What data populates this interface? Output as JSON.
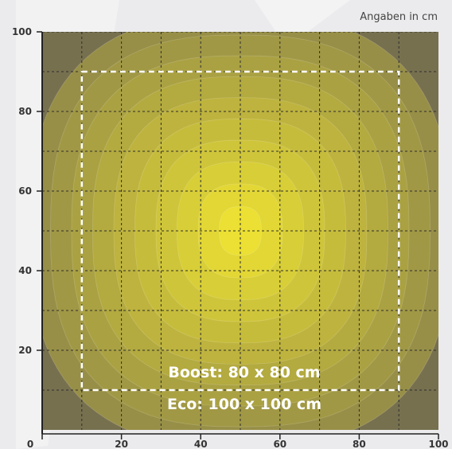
{
  "chart_data": {
    "type": "heatmap",
    "title": "",
    "xlabel": "",
    "ylabel": "",
    "unit_note": "Angaben in cm",
    "xlim": [
      0,
      100
    ],
    "ylim": [
      0,
      100
    ],
    "x_ticks": [
      "0",
      "20",
      "40",
      "60",
      "80",
      "100"
    ],
    "y_ticks": [
      "20",
      "40",
      "60",
      "80",
      "100"
    ],
    "grid": true,
    "grid_step": 10,
    "center": [
      50,
      50
    ],
    "peak_color": "#ebe033",
    "edge_color": "#77704f",
    "areas": [
      {
        "name": "Boost",
        "label": "Boost: 80 x 80 cm",
        "x": [
          10,
          90
        ],
        "y": [
          10,
          90
        ]
      },
      {
        "name": "Eco",
        "label": "Eco: 100 x 100 cm",
        "x": [
          0,
          100
        ],
        "y": [
          0,
          100
        ]
      }
    ]
  }
}
